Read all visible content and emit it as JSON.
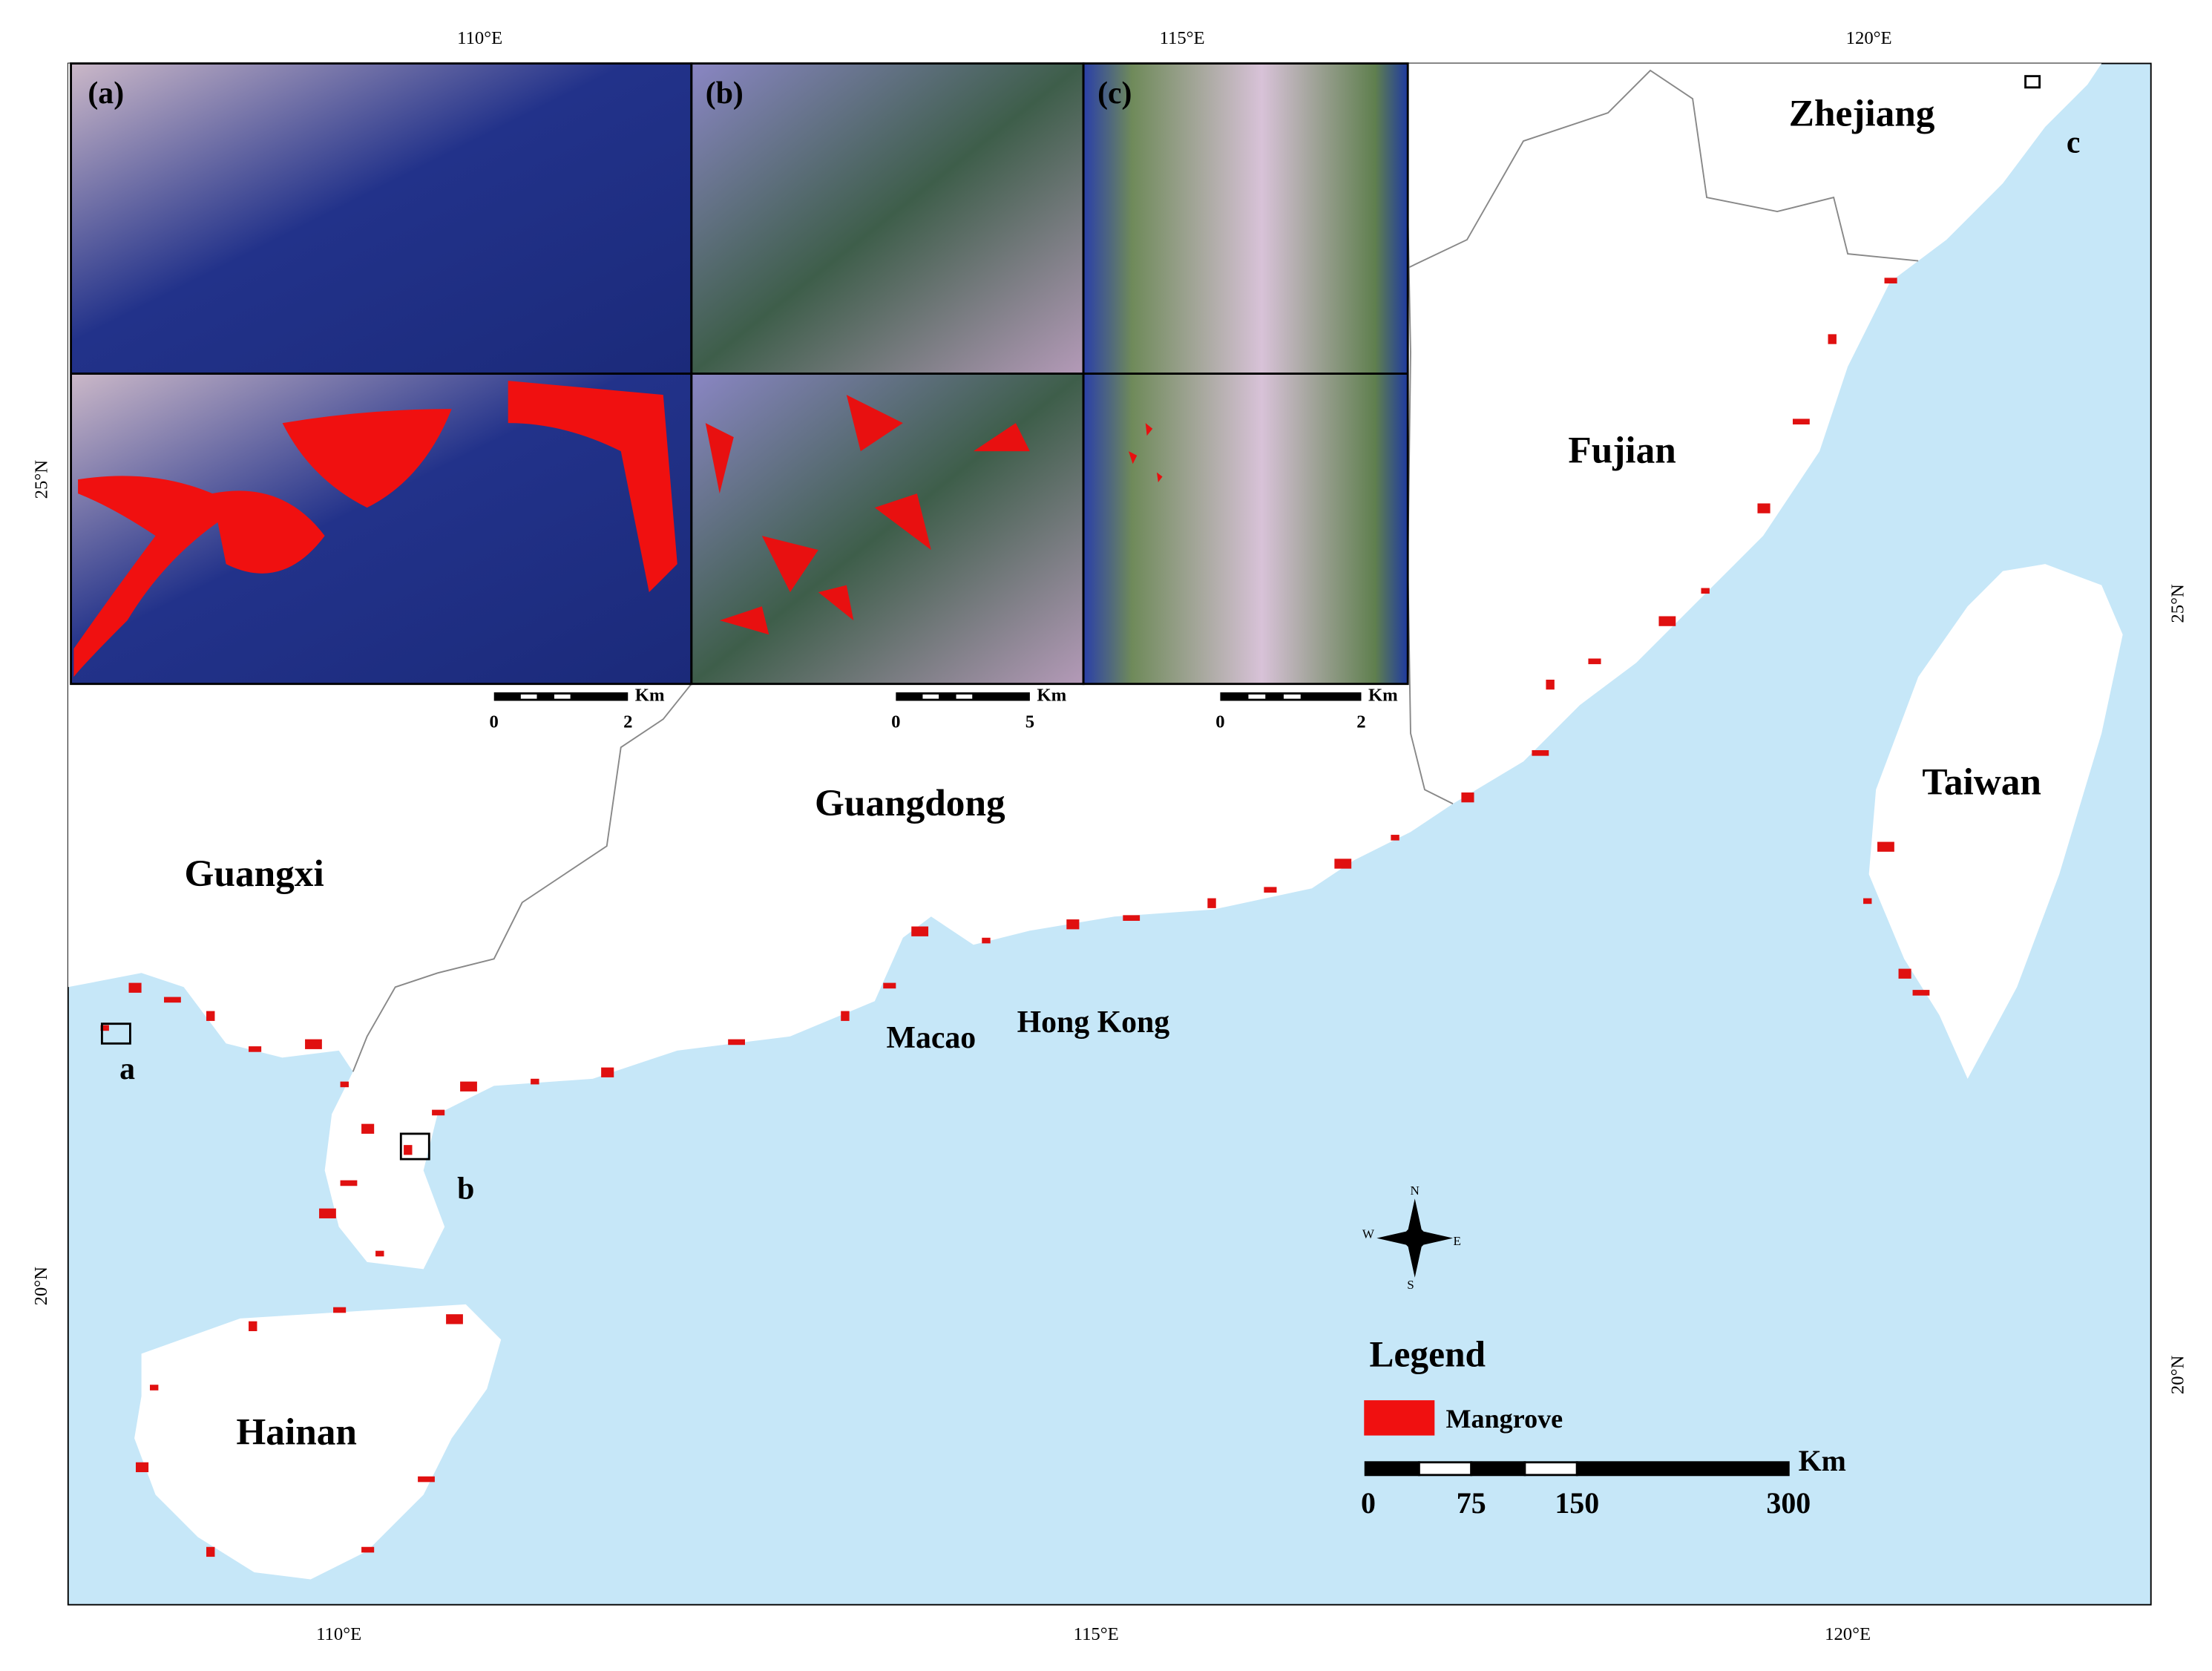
{
  "graticule": {
    "top": [
      "110°E",
      "115°E",
      "120°E"
    ],
    "bottom": [
      "110°E",
      "115°E",
      "120°E"
    ],
    "left": [
      "25°N",
      "20°N"
    ],
    "right": [
      "25°N",
      "20°N"
    ]
  },
  "regions": [
    "Zhejiang",
    "Fujian",
    "Guangdong",
    "Guangxi",
    "Taiwan",
    "Hainan",
    "Macao",
    "Hong Kong"
  ],
  "locators": [
    "a",
    "b",
    "c"
  ],
  "insets": [
    {
      "label": "(a)",
      "scale": [
        "0",
        "2"
      ],
      "unit": "Km"
    },
    {
      "label": "(b)",
      "scale": [
        "0",
        "5"
      ],
      "unit": "Km"
    },
    {
      "label": "(c)",
      "scale": [
        "0",
        "2"
      ],
      "unit": "Km"
    }
  ],
  "compass": [
    "N",
    "S",
    "E",
    "W"
  ],
  "legend": {
    "title": "Legend",
    "item": "Mangrove",
    "scale": [
      "0",
      "75",
      "150",
      "300"
    ],
    "unit": "Km"
  }
}
